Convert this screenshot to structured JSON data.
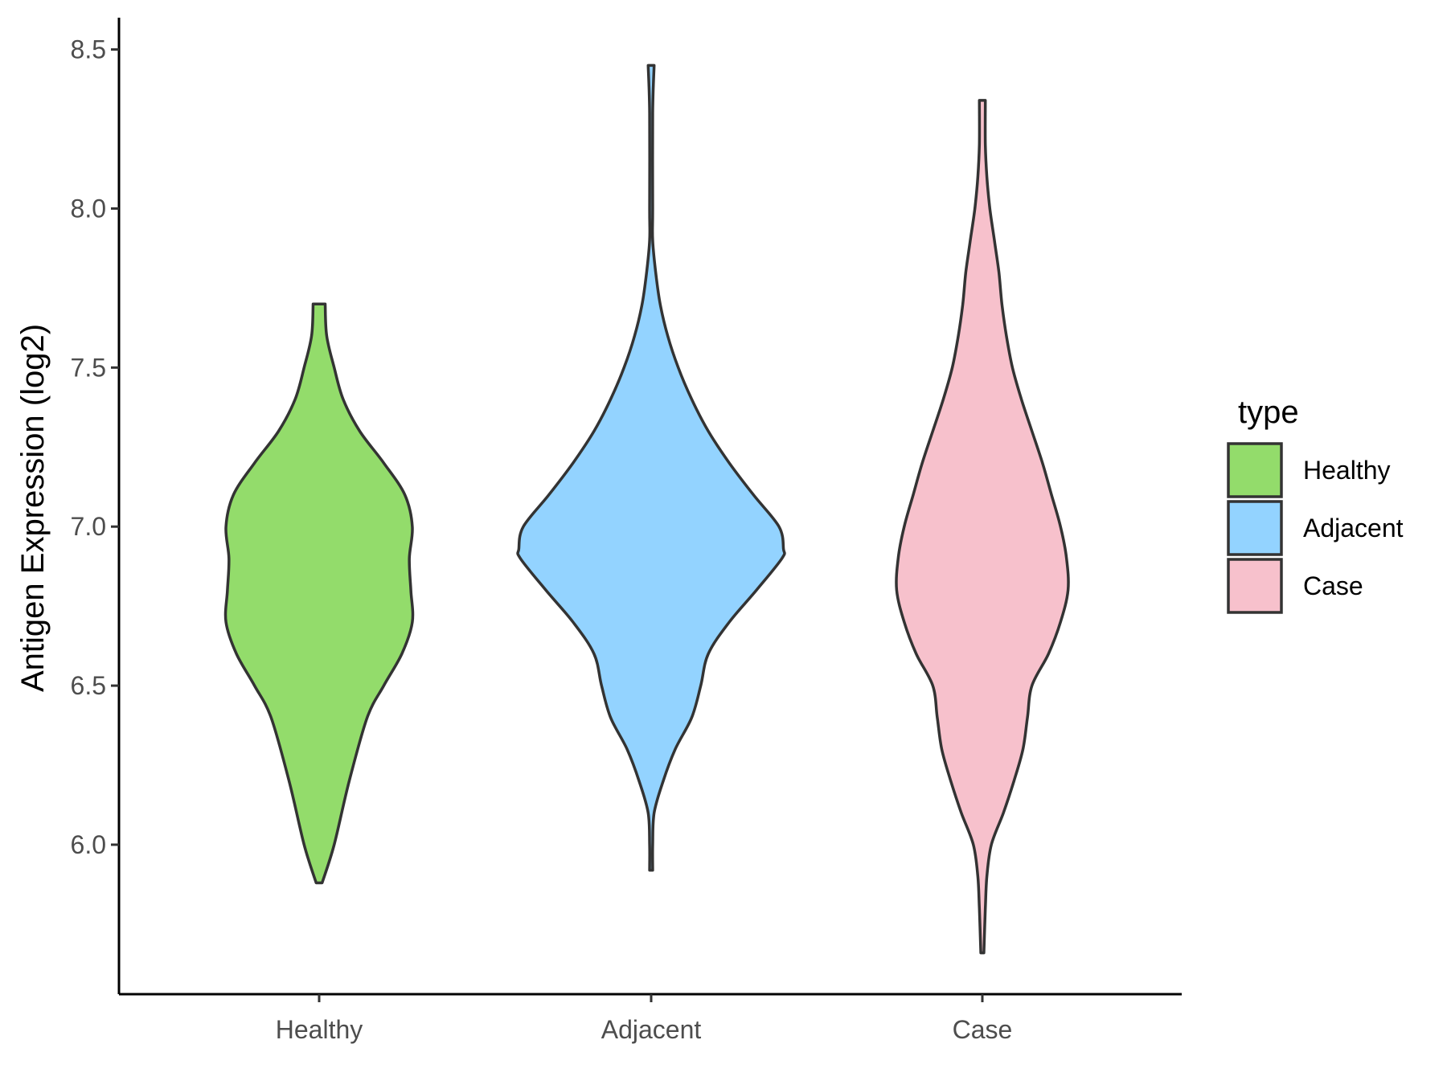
{
  "chart_data": {
    "type": "violin",
    "xlabel": "",
    "ylabel": "Antigen Expression (log2)",
    "categories": [
      "Healthy",
      "Adjacent",
      "Case"
    ],
    "y_ticks": [
      "6.0",
      "6.5",
      "7.0",
      "7.5",
      "8.0",
      "8.5"
    ],
    "ylim": [
      5.53,
      8.6
    ],
    "grid": false,
    "legend": {
      "title": "type",
      "position": "right",
      "entries": [
        "Healthy",
        "Adjacent",
        "Case"
      ]
    },
    "colors": {
      "Healthy": "#93dc6b",
      "Adjacent": "#93d3ff",
      "Case": "#f7c1cc",
      "outline": "#333333"
    },
    "series": [
      {
        "name": "Healthy",
        "min": 5.88,
        "max": 7.7,
        "density": [
          [
            5.88,
            0.02
          ],
          [
            6.0,
            0.1
          ],
          [
            6.2,
            0.2
          ],
          [
            6.4,
            0.32
          ],
          [
            6.5,
            0.43
          ],
          [
            6.6,
            0.55
          ],
          [
            6.7,
            0.62
          ],
          [
            6.8,
            0.61
          ],
          [
            6.9,
            0.6
          ],
          [
            7.0,
            0.62
          ],
          [
            7.1,
            0.57
          ],
          [
            7.2,
            0.43
          ],
          [
            7.3,
            0.27
          ],
          [
            7.4,
            0.16
          ],
          [
            7.5,
            0.1
          ],
          [
            7.6,
            0.05
          ],
          [
            7.7,
            0.04
          ]
        ]
      },
      {
        "name": "Adjacent",
        "min": 5.92,
        "max": 8.45,
        "density": [
          [
            5.92,
            0.01
          ],
          [
            6.0,
            0.01
          ],
          [
            6.1,
            0.02
          ],
          [
            6.2,
            0.08
          ],
          [
            6.3,
            0.16
          ],
          [
            6.4,
            0.27
          ],
          [
            6.5,
            0.33
          ],
          [
            6.6,
            0.38
          ],
          [
            6.7,
            0.52
          ],
          [
            6.8,
            0.7
          ],
          [
            6.9,
            0.87
          ],
          [
            6.93,
            0.88
          ],
          [
            7.0,
            0.85
          ],
          [
            7.1,
            0.68
          ],
          [
            7.2,
            0.52
          ],
          [
            7.3,
            0.38
          ],
          [
            7.4,
            0.27
          ],
          [
            7.5,
            0.18
          ],
          [
            7.6,
            0.11
          ],
          [
            7.7,
            0.06
          ],
          [
            7.8,
            0.03
          ],
          [
            7.9,
            0.01
          ],
          [
            8.0,
            0.01
          ],
          [
            8.3,
            0.01
          ],
          [
            8.45,
            0.02
          ]
        ]
      },
      {
        "name": "Case",
        "min": 5.66,
        "max": 8.34,
        "density": [
          [
            5.66,
            0.01
          ],
          [
            5.8,
            0.02
          ],
          [
            5.9,
            0.03
          ],
          [
            6.0,
            0.06
          ],
          [
            6.1,
            0.14
          ],
          [
            6.2,
            0.21
          ],
          [
            6.3,
            0.27
          ],
          [
            6.4,
            0.3
          ],
          [
            6.5,
            0.33
          ],
          [
            6.6,
            0.44
          ],
          [
            6.7,
            0.52
          ],
          [
            6.8,
            0.57
          ],
          [
            6.9,
            0.56
          ],
          [
            7.0,
            0.52
          ],
          [
            7.1,
            0.46
          ],
          [
            7.2,
            0.4
          ],
          [
            7.3,
            0.33
          ],
          [
            7.4,
            0.26
          ],
          [
            7.5,
            0.2
          ],
          [
            7.6,
            0.16
          ],
          [
            7.7,
            0.13
          ],
          [
            7.8,
            0.11
          ],
          [
            7.9,
            0.08
          ],
          [
            8.0,
            0.05
          ],
          [
            8.1,
            0.03
          ],
          [
            8.2,
            0.02
          ],
          [
            8.34,
            0.02
          ]
        ]
      }
    ]
  }
}
